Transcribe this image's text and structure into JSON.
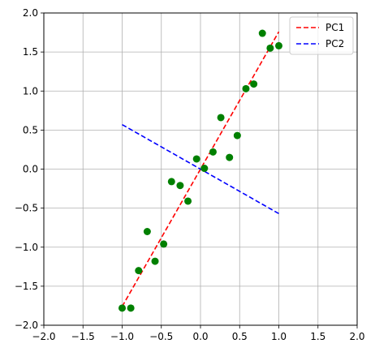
{
  "chart_data": {
    "type": "scatter",
    "title": "",
    "xlabel": "",
    "ylabel": "",
    "xlim": [
      -2.0,
      2.0
    ],
    "ylim": [
      -2.0,
      2.0
    ],
    "grid": true,
    "legend_placement": "top-right",
    "x_ticks": [
      "−2.0",
      "−1.5",
      "−1.0",
      "−0.5",
      "0.0",
      "0.5",
      "1.0",
      "1.5",
      "2.0"
    ],
    "y_ticks": [
      "−2.0",
      "−1.5",
      "−1.0",
      "−0.5",
      "0.0",
      "0.5",
      "1.0",
      "1.5",
      "2.0"
    ],
    "x_tick_values": [
      -2.0,
      -1.5,
      -1.0,
      -0.5,
      0.0,
      0.5,
      1.0,
      1.5,
      2.0
    ],
    "y_tick_values": [
      -2.0,
      -1.5,
      -1.0,
      -0.5,
      0.0,
      0.5,
      1.0,
      1.5,
      2.0
    ],
    "points": {
      "color": "#008000",
      "x": [
        -1.0,
        -0.89,
        -0.79,
        -0.68,
        -0.58,
        -0.47,
        -0.37,
        -0.26,
        -0.16,
        -0.05,
        0.05,
        0.16,
        0.26,
        0.37,
        0.47,
        0.58,
        0.68,
        0.79,
        0.89,
        1.0
      ],
      "y": [
        -1.78,
        -1.78,
        -1.3,
        -0.8,
        -1.18,
        -0.96,
        -0.16,
        -0.21,
        -0.41,
        0.13,
        0.01,
        0.22,
        0.66,
        0.15,
        0.43,
        1.03,
        1.09,
        1.74,
        1.55,
        1.58
      ]
    },
    "series": [
      {
        "name": "PC1",
        "color": "#ff0000",
        "style": "dashed",
        "x": [
          -1.0,
          1.0
        ],
        "y": [
          -1.76,
          1.76
        ]
      },
      {
        "name": "PC2",
        "color": "#0000ff",
        "style": "dashed",
        "x": [
          -1.0,
          1.0
        ],
        "y": [
          0.57,
          -0.57
        ]
      }
    ]
  }
}
